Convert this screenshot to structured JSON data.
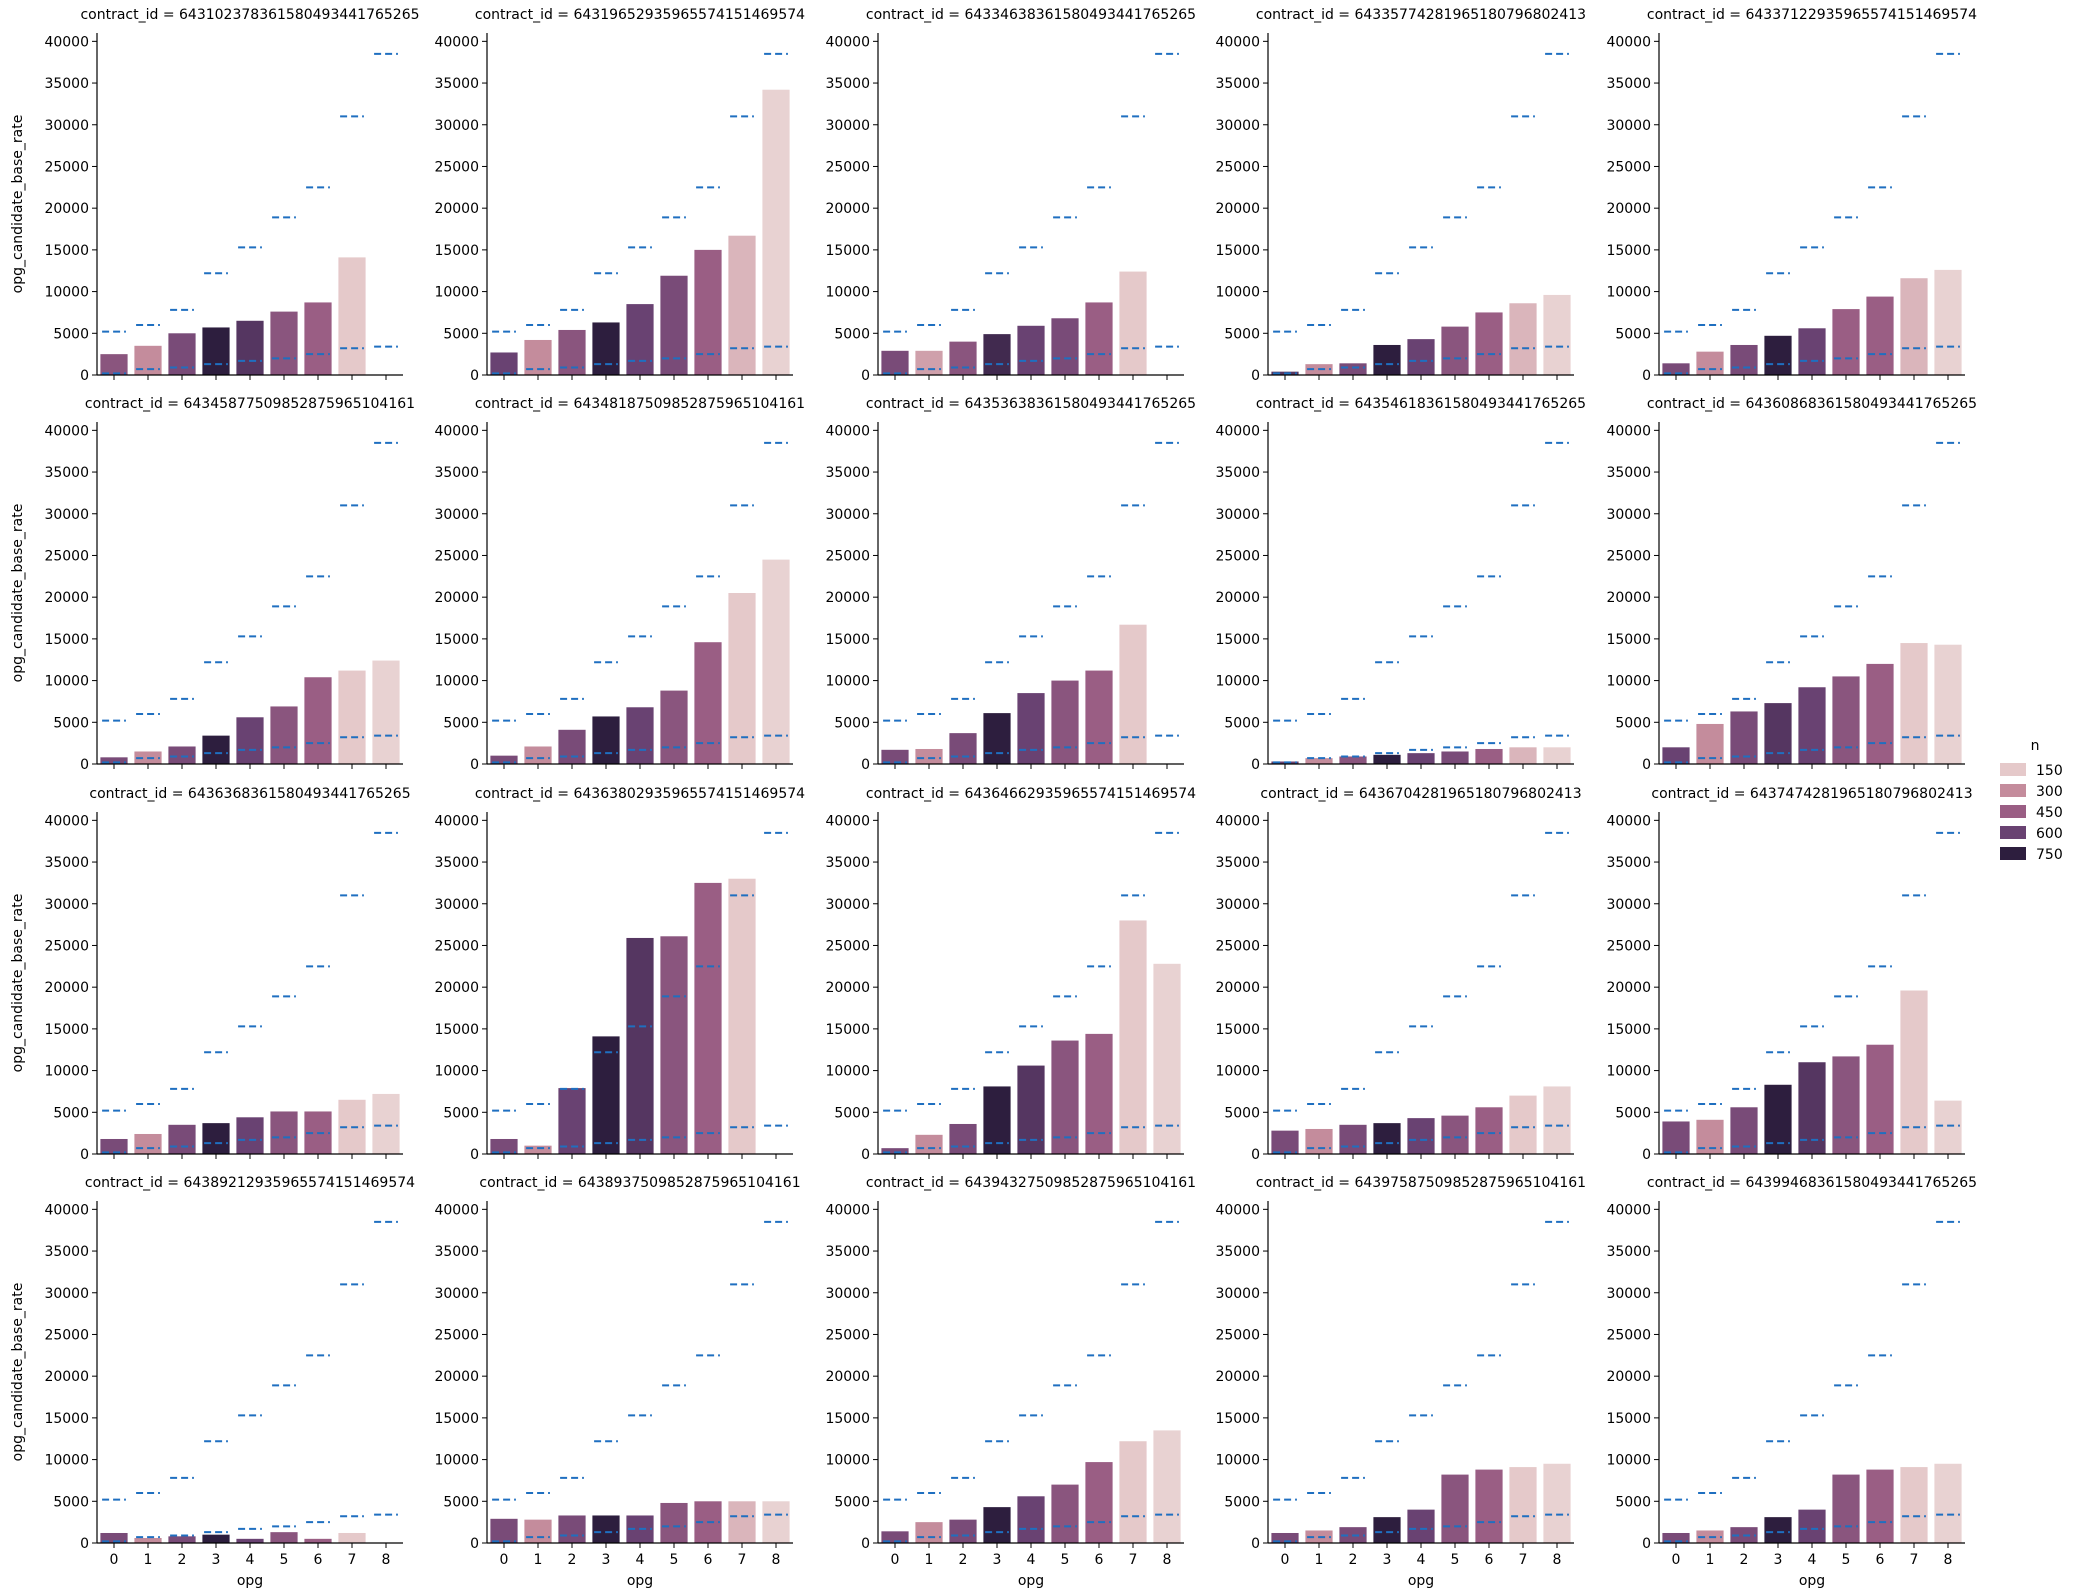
{
  "figure": {
    "xlabel": "opg",
    "ylabel": "opg_candidate_base_rate",
    "title_prefix": "contract_id = "
  },
  "legend": {
    "title": "n",
    "entries": [
      {
        "label": "150",
        "color": "#e5c9ca"
      },
      {
        "label": "300",
        "color": "#c48c9c"
      },
      {
        "label": "450",
        "color": "#9a5e84"
      },
      {
        "label": "600",
        "color": "#694272"
      },
      {
        "label": "750",
        "color": "#2d1e3e"
      }
    ]
  },
  "colors": {
    "dash": "#1f6fc0",
    "axis": "#000000"
  },
  "chart_data": {
    "type": "bar",
    "layout": "facet-grid 4x5",
    "categories": [
      "0",
      "1",
      "2",
      "3",
      "4",
      "5",
      "6",
      "7",
      "8"
    ],
    "ylim": [
      0,
      41000
    ],
    "yticks": [
      0,
      5000,
      10000,
      15000,
      20000,
      25000,
      30000,
      35000,
      40000
    ],
    "reference_upper": [
      5200,
      6000,
      7800,
      12200,
      15300,
      18900,
      22500,
      31000,
      38500
    ],
    "reference_lower": [
      200,
      700,
      900,
      1300,
      1700,
      2000,
      2500,
      3200,
      3400
    ],
    "panels": [
      {
        "contract_id": "643102378361580493441765265",
        "values": [
          2500,
          3500,
          5000,
          5700,
          6500,
          7600,
          8700,
          14100,
          null
        ],
        "n": [
          500,
          300,
          550,
          750,
          650,
          500,
          450,
          150,
          null
        ]
      },
      {
        "contract_id": "643196529359655741514695 74",
        "values": [
          2700,
          4200,
          5400,
          6300,
          8500,
          11900,
          15000,
          16700,
          34200
        ],
        "n": [
          600,
          300,
          500,
          750,
          600,
          550,
          450,
          200,
          100
        ]
      },
      {
        "contract_id": "643346383615804934417652 65",
        "values": [
          2900,
          2900,
          4000,
          4900,
          5900,
          6800,
          8700,
          12400,
          null
        ],
        "n": [
          550,
          250,
          500,
          700,
          600,
          550,
          450,
          150,
          null
        ]
      },
      {
        "contract_id": "643357742819651807968024 13",
        "values": [
          400,
          1300,
          1400,
          3600,
          4300,
          5800,
          7500,
          8600,
          9600
        ],
        "n": [
          650,
          300,
          550,
          750,
          600,
          500,
          450,
          200,
          100
        ]
      },
      {
        "contract_id": "643371229359655741514695 74",
        "values": [
          1400,
          2800,
          3600,
          4700,
          5600,
          7900,
          9400,
          11600,
          12600
        ],
        "n": [
          550,
          300,
          550,
          750,
          600,
          450,
          450,
          200,
          100
        ]
      },
      {
        "contract_id": "643458775098528759651041 61",
        "values": [
          800,
          1500,
          2100,
          3400,
          5600,
          6900,
          10400,
          11200,
          12400
        ],
        "n": [
          550,
          300,
          550,
          750,
          600,
          500,
          450,
          150,
          100
        ]
      },
      {
        "contract_id": "643481875098528759651041 61",
        "values": [
          1000,
          2100,
          4100,
          5700,
          6800,
          8800,
          14600,
          20500,
          24500
        ],
        "n": [
          550,
          300,
          550,
          750,
          600,
          500,
          450,
          150,
          100
        ]
      },
      {
        "contract_id": "643536383615804934417652 65",
        "values": [
          1700,
          1800,
          3700,
          6100,
          8500,
          10000,
          11200,
          16700,
          null
        ],
        "n": [
          550,
          300,
          550,
          750,
          600,
          500,
          450,
          150,
          null
        ]
      },
      {
        "contract_id": "643546183615804934417652 65",
        "values": [
          300,
          700,
          900,
          1100,
          1300,
          1500,
          1800,
          2000,
          2000
        ],
        "n": [
          600,
          300,
          500,
          750,
          600,
          550,
          450,
          200,
          100
        ]
      },
      {
        "contract_id": "643608683615804934417652 65",
        "values": [
          2000,
          4800,
          6300,
          7300,
          9200,
          10500,
          12000,
          14500,
          14300
        ],
        "n": [
          600,
          300,
          550,
          650,
          600,
          500,
          450,
          150,
          100
        ]
      },
      {
        "contract_id": "643636836158049344176526 5",
        "values": [
          1800,
          2400,
          3500,
          3700,
          4400,
          5100,
          5100,
          6500,
          7200
        ],
        "n": [
          550,
          300,
          550,
          750,
          600,
          500,
          450,
          150,
          100
        ]
      },
      {
        "contract_id": "643638029359655741514695 74",
        "values": [
          1800,
          1000,
          7900,
          14100,
          25900,
          26100,
          32500,
          33000,
          null
        ],
        "n": [
          550,
          300,
          600,
          750,
          650,
          500,
          450,
          150,
          null
        ]
      },
      {
        "contract_id": "643646629359655741514695 74",
        "values": [
          700,
          2300,
          3600,
          8100,
          10600,
          13600,
          14400,
          28000,
          22800
        ],
        "n": [
          550,
          300,
          550,
          750,
          650,
          500,
          450,
          150,
          100
        ]
      },
      {
        "contract_id": "643670428196518079680241 3",
        "values": [
          2800,
          3000,
          3500,
          3700,
          4300,
          4600,
          5600,
          7000,
          8100
        ],
        "n": [
          550,
          300,
          550,
          750,
          600,
          500,
          450,
          150,
          100
        ]
      },
      {
        "contract_id": "643747428196518079680241 3",
        "values": [
          3900,
          4100,
          5600,
          8300,
          11000,
          11700,
          13100,
          19600,
          6400
        ],
        "n": [
          550,
          300,
          550,
          750,
          650,
          500,
          450,
          150,
          100
        ]
      },
      {
        "contract_id": "643892129359655741514695 74",
        "values": [
          1200,
          600,
          800,
          1000,
          500,
          1300,
          500,
          1200,
          null
        ],
        "n": [
          550,
          300,
          550,
          750,
          600,
          500,
          450,
          150,
          null
        ]
      },
      {
        "contract_id": "643893750985287596510416 1",
        "values": [
          2900,
          2800,
          3300,
          3300,
          3300,
          4800,
          5000,
          5000,
          5000
        ],
        "n": [
          550,
          300,
          550,
          750,
          600,
          500,
          450,
          200,
          100
        ]
      },
      {
        "contract_id": "643943275098528759651041 61",
        "values": [
          1400,
          2500,
          2800,
          4300,
          5600,
          7000,
          9700,
          12200,
          13500
        ],
        "n": [
          550,
          300,
          550,
          750,
          600,
          500,
          450,
          150,
          100
        ]
      },
      {
        "contract_id": "643975875098528759651041 61",
        "values": [
          1200,
          1500,
          1900,
          3100,
          4000,
          8200,
          8800,
          9100,
          9500
        ],
        "n": [
          550,
          300,
          550,
          750,
          600,
          500,
          450,
          150,
          100
        ]
      },
      {
        "contract_id": "643994683615804934417652 65",
        "values": [
          1200,
          1500,
          1900,
          3100,
          4000,
          8200,
          8800,
          9100,
          9500
        ],
        "n": [
          550,
          300,
          550,
          750,
          600,
          500,
          450,
          150,
          100
        ]
      }
    ]
  }
}
